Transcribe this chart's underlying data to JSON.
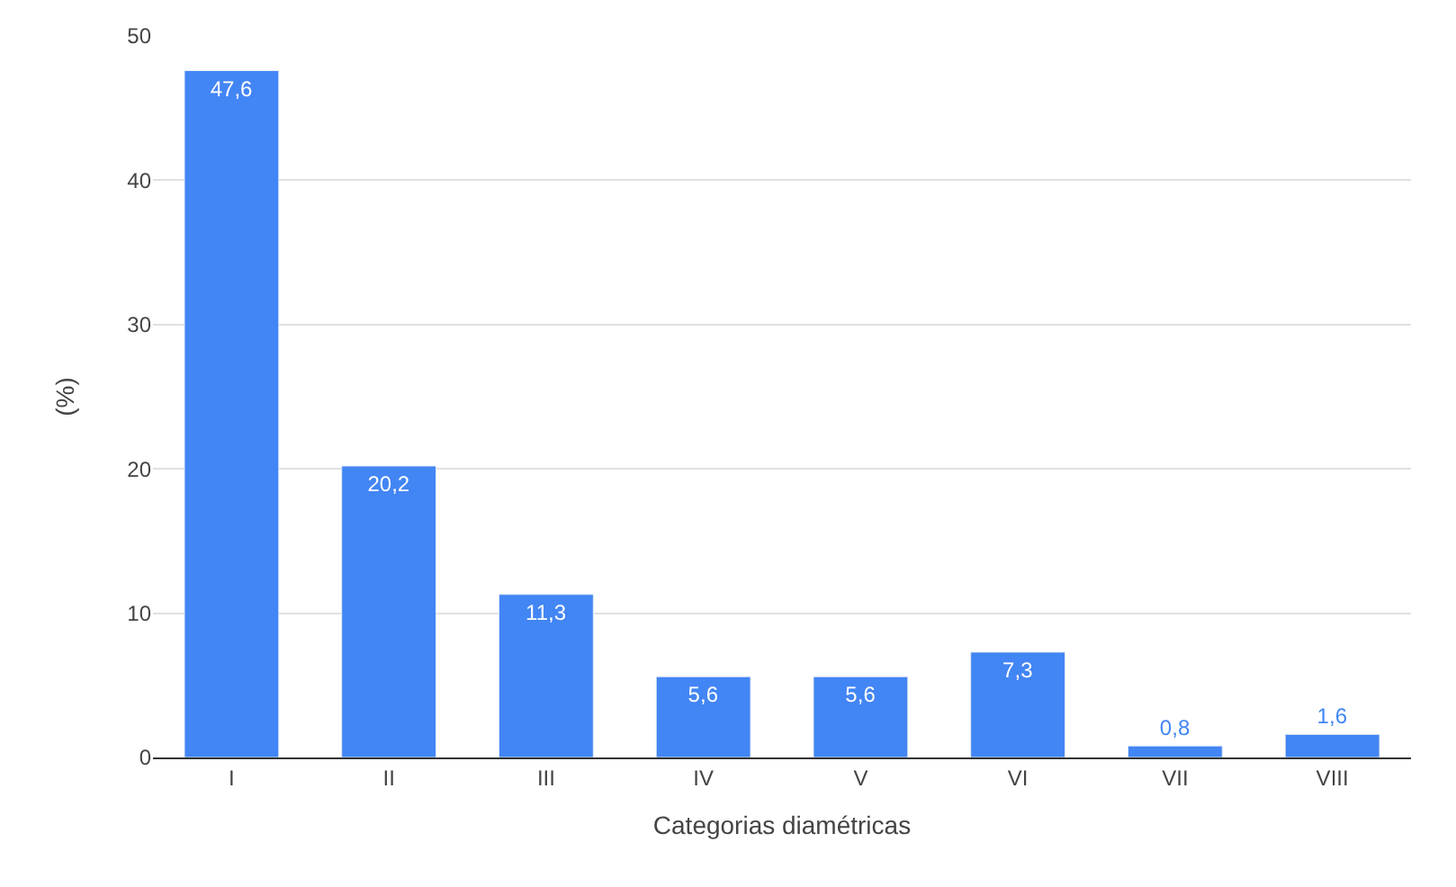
{
  "chart_data": {
    "type": "bar",
    "xlabel": "Categorias diamétricas",
    "ylabel": "(%)",
    "categories": [
      "I",
      "II",
      "III",
      "IV",
      "V",
      "VI",
      "VII",
      "VIII"
    ],
    "values": [
      47.6,
      20.2,
      11.3,
      5.6,
      5.6,
      7.3,
      0.8,
      1.6
    ],
    "value_labels": [
      "47,6",
      "20,2",
      "11,3",
      "5,6",
      "5,6",
      "7,3",
      "0,8",
      "1,6"
    ],
    "color": "#4285f4",
    "ylim": [
      0,
      50
    ],
    "yticks": [
      0,
      10,
      20,
      30,
      40,
      50
    ],
    "grid": "y",
    "legend": false
  }
}
